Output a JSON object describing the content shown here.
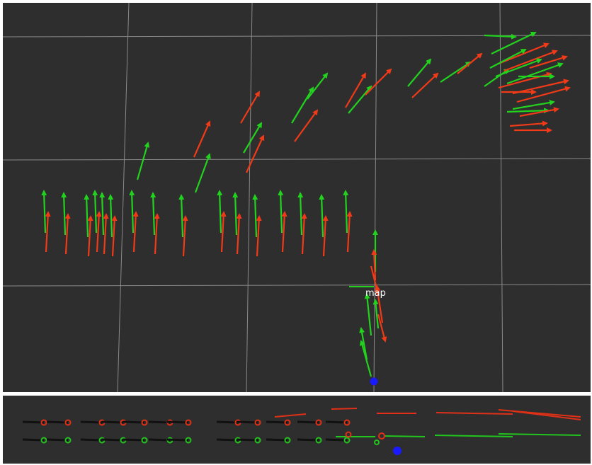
{
  "viewport_top": {
    "frame_label": "map",
    "colors": {
      "background": "#2e2e2e",
      "grid": "#8a8a8a",
      "pose_estimate_arrow": "#f03a18",
      "ground_truth_arrow": "#22d21e",
      "robot_marker": "#1a1aff"
    }
  },
  "viewport_bottom": {
    "colors": {
      "background": "#2e2e2e",
      "red_track": "#e03018",
      "green_track": "#22c41e",
      "shaft": "#111111",
      "robot_marker": "#1a1aff"
    }
  }
}
